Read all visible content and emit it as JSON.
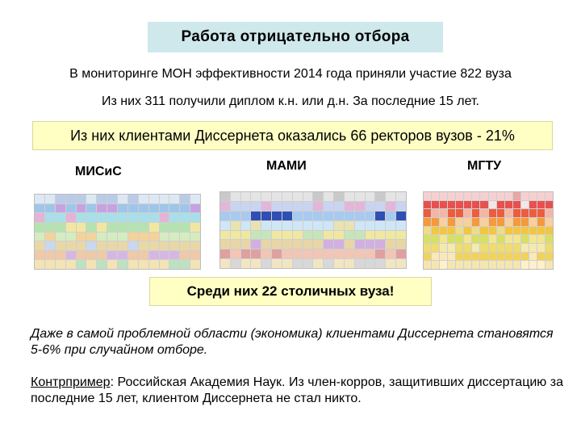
{
  "title": "Работа отрицательно отбора",
  "line1": "В мониторинге МОН эффективности 2014 года приняли участие 822 вуза",
  "line2": "Из них 311 получили диплом к.н. или д.н.  За последние 15 лет.",
  "highlight": "Из них клиентами Диссернета оказались 66 ректоров вузов -  21%",
  "universities": [
    {
      "label": "МИСиС"
    },
    {
      "label": "МАМИ"
    },
    {
      "label": "МГТУ"
    }
  ],
  "box2": "Среди них 22 столичных вуза!",
  "para1": "Даже в самой проблемной области (экономика) клиентами Диссернета становятся  5-6% при случайном отборе.",
  "para2": {
    "lead": "Контрпример",
    "text": ":  Российская Академия Наук.  Из член-корров, защитивших диссертацию за последние 15 лет, клиентом Диссернета не стал никто."
  },
  "colors": {
    "title_bg": "#cfe8ec",
    "highlight_bg": "#ffffc4"
  }
}
